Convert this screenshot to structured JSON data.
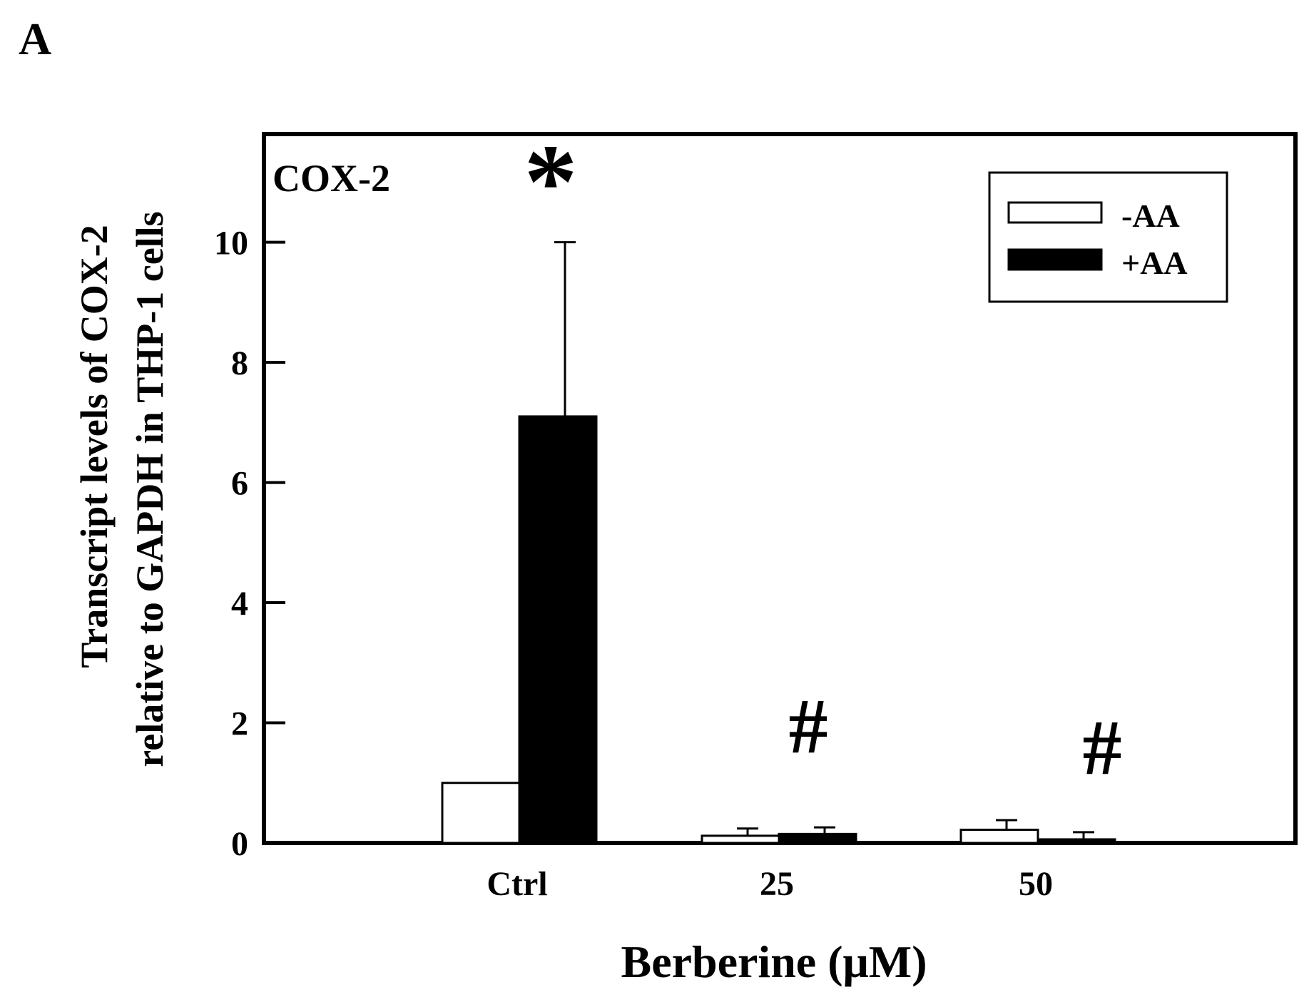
{
  "panel_label": "A",
  "chart_data": {
    "type": "bar",
    "title": "COX-2",
    "xlabel": "Berberine (μM)",
    "ylabel_lines": [
      "Transcript levels of COX-2",
      "relative to GAPDH in THP-1 cells"
    ],
    "categories": [
      "Ctrl",
      "25",
      "50"
    ],
    "ylim": [
      0,
      11.8
    ],
    "yticks": [
      0,
      2,
      4,
      6,
      8,
      10
    ],
    "legend_position": "top-right",
    "series": [
      {
        "name": "-AA",
        "fill": "#ffffff",
        "values": [
          1.0,
          0.12,
          0.22
        ],
        "errors": [
          0,
          0.12,
          0.16
        ]
      },
      {
        "name": "+AA",
        "fill": "#000000",
        "values": [
          7.1,
          0.15,
          0.06
        ],
        "errors": [
          2.9,
          0.11,
          0.12
        ]
      }
    ],
    "annotations": [
      "*",
      "#",
      "#"
    ]
  }
}
